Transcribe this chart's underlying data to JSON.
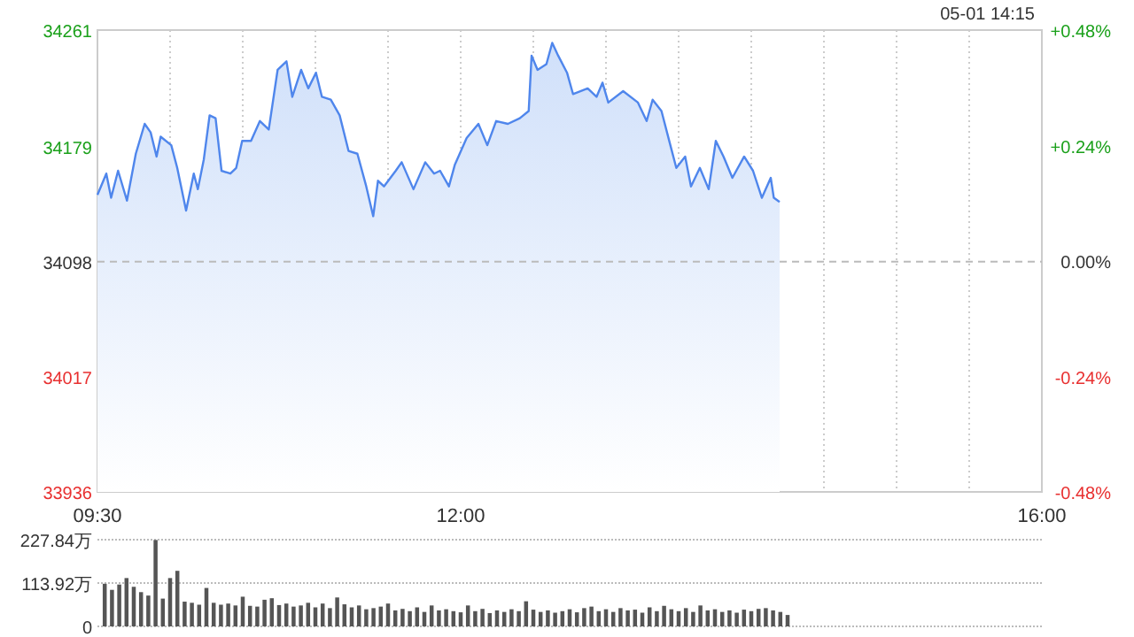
{
  "chart_data": [
    {
      "type": "area",
      "annotations": [
        "05-01 14:15"
      ],
      "xlim": [
        9.5,
        16
      ],
      "xticks": [
        {
          "value": 9.5,
          "label": "09:30"
        },
        {
          "value": 10,
          "label": null
        },
        {
          "value": 10.5,
          "label": null
        },
        {
          "value": 11,
          "label": null
        },
        {
          "value": 11.5,
          "label": null
        },
        {
          "value": 12,
          "label": "12:00"
        },
        {
          "value": 12.5,
          "label": null
        },
        {
          "value": 13,
          "label": null
        },
        {
          "value": 13.5,
          "label": null
        },
        {
          "value": 14,
          "label": null
        },
        {
          "value": 14.5,
          "label": null
        },
        {
          "value": 15,
          "label": null
        },
        {
          "value": 15.5,
          "label": null
        },
        {
          "value": 16,
          "label": "16:00"
        }
      ],
      "ylim": [
        33936,
        34261
      ],
      "yticks": [
        33936,
        34017,
        34098,
        34179,
        34261
      ],
      "y2lim": [
        -0.48,
        0.48
      ],
      "y2ticks": [
        {
          "value": -0.48,
          "label": "-0.48%"
        },
        {
          "value": -0.24,
          "label": "-0.24%"
        },
        {
          "value": 0,
          "label": "0.00%"
        },
        {
          "value": 0.24,
          "label": "+0.24%"
        },
        {
          "value": 0.48,
          "label": "+0.48%"
        }
      ],
      "grid": "x",
      "ref_lines": [
        {
          "axis": "y",
          "value": 34098,
          "color": "#bbbbbb",
          "line_style": "dashed"
        }
      ],
      "series": [
        {
          "color": "#4f86ec",
          "x": [
            9.5,
            9.561,
            9.594,
            9.642,
            9.703,
            9.764,
            9.825,
            9.866,
            9.907,
            9.935,
            10.008,
            10.049,
            10.11,
            10.163,
            10.191,
            10.232,
            10.272,
            10.313,
            10.354,
            10.415,
            10.455,
            10.496,
            10.557,
            10.618,
            10.679,
            10.74,
            10.801,
            10.841,
            10.902,
            10.951,
            11.004,
            11.045,
            11.106,
            11.167,
            11.228,
            11.289,
            11.35,
            11.398,
            11.431,
            11.472,
            11.553,
            11.594,
            11.675,
            11.756,
            11.817,
            11.858,
            11.919,
            11.959,
            12.041,
            12.122,
            12.183,
            12.244,
            12.325,
            12.407,
            12.468,
            12.488,
            12.529,
            12.59,
            12.63,
            12.671,
            12.732,
            12.773,
            12.874,
            12.935,
            12.976,
            13.016,
            13.118,
            13.22,
            13.28,
            13.321,
            13.382,
            13.443,
            13.484,
            13.545,
            13.585,
            13.646,
            13.707,
            13.756,
            13.809,
            13.87,
            13.951,
            14.012,
            14.073,
            14.134,
            14.155,
            14.195
          ],
          "values": [
            34145,
            34160,
            34143,
            34162,
            34141,
            34174,
            34195,
            34189,
            34172,
            34186,
            34180,
            34164,
            34134,
            34160,
            34149,
            34170,
            34201,
            34199,
            34162,
            34160,
            34164,
            34183,
            34183,
            34197,
            34191,
            34233,
            34239,
            34214,
            34233,
            34220,
            34231,
            34214,
            34212,
            34201,
            34176,
            34174,
            34151,
            34130,
            34155,
            34151,
            34162,
            34168,
            34149,
            34168,
            34160,
            34162,
            34151,
            34166,
            34185,
            34195,
            34180,
            34197,
            34195,
            34199,
            34204,
            34243,
            34233,
            34237,
            34252,
            34243,
            34231,
            34216,
            34220,
            34214,
            34224,
            34210,
            34218,
            34210,
            34197,
            34212,
            34204,
            34180,
            34164,
            34172,
            34151,
            34164,
            34149,
            34183,
            34172,
            34157,
            34172,
            34162,
            34143,
            34157,
            34143,
            34140
          ]
        }
      ]
    },
    {
      "type": "bar",
      "xlim": [
        9.5,
        16
      ],
      "ylim": [
        0,
        227.84
      ],
      "yticks": [
        {
          "value": 0,
          "label": "0"
        },
        {
          "value": 113.92,
          "label": "113.92万"
        },
        {
          "value": 227.84,
          "label": "227.84万"
        }
      ],
      "grid": "y",
      "tick_labels": "y",
      "color": "#555555",
      "x": [
        9.55,
        9.6,
        9.65,
        9.7,
        9.75,
        9.8,
        9.85,
        9.9,
        9.95,
        10.0,
        10.05,
        10.1,
        10.15,
        10.2,
        10.25,
        10.3,
        10.35,
        10.4,
        10.45,
        10.5,
        10.55,
        10.6,
        10.65,
        10.7,
        10.75,
        10.8,
        10.85,
        10.9,
        10.95,
        11.0,
        11.05,
        11.1,
        11.15,
        11.2,
        11.25,
        11.3,
        11.35,
        11.4,
        11.45,
        11.5,
        11.55,
        11.6,
        11.65,
        11.7,
        11.75,
        11.8,
        11.85,
        11.9,
        11.95,
        12.0,
        12.05,
        12.1,
        12.15,
        12.2,
        12.25,
        12.3,
        12.35,
        12.4,
        12.45,
        12.5,
        12.55,
        12.6,
        12.65,
        12.7,
        12.75,
        12.8,
        12.85,
        12.9,
        12.95,
        13.0,
        13.05,
        13.1,
        13.15,
        13.2,
        13.25,
        13.3,
        13.35,
        13.4,
        13.45,
        13.5,
        13.55,
        13.6,
        13.65,
        13.7,
        13.75,
        13.8,
        13.85,
        13.9,
        13.95,
        14.0,
        14.05,
        14.1,
        14.15,
        14.2,
        14.25
      ],
      "values": [
        112,
        96,
        110,
        127,
        104,
        90,
        81,
        227,
        73,
        127,
        146,
        65,
        62,
        57,
        101,
        62,
        57,
        60,
        55,
        78,
        54,
        52,
        70,
        74,
        56,
        60,
        52,
        55,
        62,
        50,
        60,
        48,
        76,
        58,
        50,
        55,
        45,
        48,
        52,
        60,
        42,
        46,
        40,
        50,
        38,
        55,
        42,
        45,
        40,
        37,
        55,
        40,
        46,
        35,
        42,
        38,
        45,
        40,
        66,
        44,
        38,
        42,
        36,
        40,
        45,
        37,
        48,
        52,
        40,
        45,
        38,
        48,
        42,
        44,
        36,
        50,
        40,
        54,
        45,
        40,
        48,
        38,
        55,
        42,
        45,
        38,
        42,
        36,
        44,
        40,
        46,
        48,
        42,
        38,
        30
      ]
    }
  ]
}
